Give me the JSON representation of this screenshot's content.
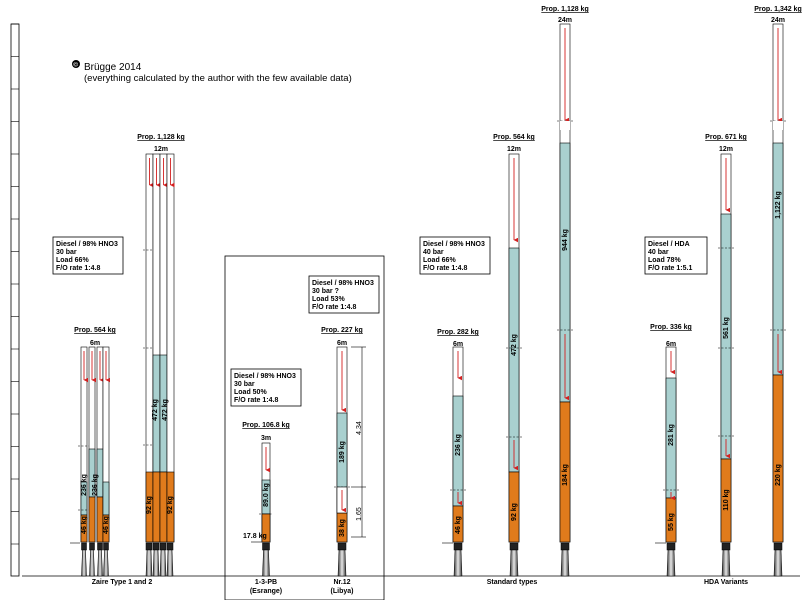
{
  "credit": {
    "symbol": "©",
    "line1": "Brügge 2014",
    "line2": "(everything calculated by the author with the few available data)"
  },
  "colors": {
    "fuel": "#e07b1c",
    "oxidizer": "#a9d0cf",
    "flow_arrow": "#d32020",
    "outline": "#000000"
  },
  "groups": [
    {
      "id": "zaire",
      "label": "Zaire Type 1 and 2"
    },
    {
      "id": "1-3-pb",
      "label": "1-3-PB",
      "sublabel": "(Esrange)"
    },
    {
      "id": "nr12",
      "label": "Nr.12",
      "sublabel": "(Libya)"
    },
    {
      "id": "standard",
      "label": "Standard types"
    },
    {
      "id": "hda",
      "label": "HDA Variants"
    }
  ],
  "spec_boxes": [
    {
      "id": "zaire",
      "lines": [
        "Diesel / 98% HNO3",
        "30 bar",
        "Load 66%",
        "F/O rate 1:4.8"
      ]
    },
    {
      "id": "1-3-pb",
      "lines": [
        "Diesel / 98% HNO3",
        "30 bar",
        "Load 50%",
        "F/O rate 1:4.8"
      ]
    },
    {
      "id": "nr12",
      "lines": [
        "Diesel / 98% HNO3",
        "30 bar ?",
        "Load 53%",
        "F/O rate 1:4.8"
      ]
    },
    {
      "id": "standard",
      "lines": [
        "Diesel / 98% HNO3",
        "40 bar",
        "Load 66%",
        "F/O rate 1:4.8"
      ]
    },
    {
      "id": "hda",
      "lines": [
        "Diesel / HDA",
        "40 bar",
        "Load 78%",
        "F/O rate 1:5.1"
      ]
    }
  ],
  "stages": [
    {
      "id": "zaire-6m",
      "prop": "Prop.  564 kg",
      "length": "6m",
      "fuel": [
        "46 kg",
        "46 kg"
      ],
      "oxidizer": [
        "236 kg",
        "236 kg"
      ]
    },
    {
      "id": "zaire-12m",
      "prop": "Prop. 1,128 kg",
      "length": "12m",
      "fuel": [
        "92 kg",
        "92 kg"
      ],
      "oxidizer": [
        "472 kg",
        "472 kg"
      ]
    },
    {
      "id": "pb-3m",
      "prop": "Prop. 106.8 kg",
      "length": "3m",
      "fuel": [
        "17.8 kg"
      ],
      "oxidizer": [
        "89.0 kg"
      ]
    },
    {
      "id": "nr12-6m",
      "prop": "Prop. 227 kg",
      "length": "6m",
      "fuel": [
        "38 kg"
      ],
      "oxidizer": [
        "189 kg"
      ],
      "dims": [
        "4.34",
        "1.65"
      ]
    },
    {
      "id": "std-6m",
      "prop": "Prop. 282 kg",
      "length": "6m",
      "fuel": [
        "46 kg"
      ],
      "oxidizer": [
        "236 kg"
      ]
    },
    {
      "id": "std-12m",
      "prop": "Prop. 564 kg",
      "length": "12m",
      "fuel": [
        "92 kg"
      ],
      "oxidizer": [
        "472 kg"
      ]
    },
    {
      "id": "std-24m",
      "prop": "Prop. 1,128 kg",
      "length": "24m",
      "fuel": [
        "184 kg"
      ],
      "oxidizer": [
        "944 kg"
      ]
    },
    {
      "id": "hda-6m",
      "prop": "Prop. 336 kg",
      "length": "6m",
      "fuel": [
        "55 kg"
      ],
      "oxidizer": [
        "281 kg"
      ]
    },
    {
      "id": "hda-12m",
      "prop": "Prop. 671 kg",
      "length": "12m",
      "fuel": [
        "110 kg"
      ],
      "oxidizer": [
        "561 kg"
      ]
    },
    {
      "id": "hda-24m",
      "prop": "Prop. 1,342 kg",
      "length": "24m",
      "fuel": [
        "220 kg"
      ],
      "oxidizer": [
        "1,122 kg"
      ]
    }
  ]
}
